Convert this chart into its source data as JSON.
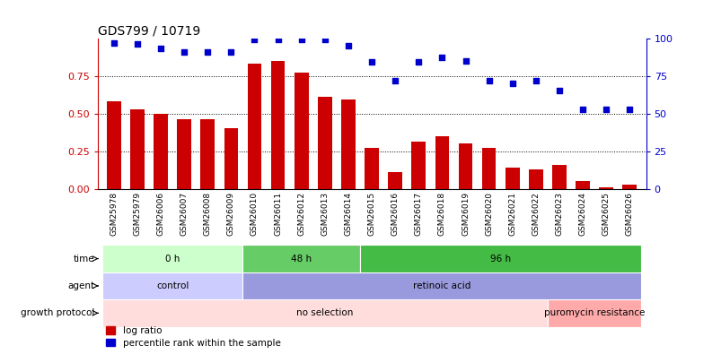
{
  "title": "GDS799 / 10719",
  "samples": [
    "GSM25978",
    "GSM25979",
    "GSM26006",
    "GSM26007",
    "GSM26008",
    "GSM26009",
    "GSM26010",
    "GSM26011",
    "GSM26012",
    "GSM26013",
    "GSM26014",
    "GSM26015",
    "GSM26016",
    "GSM26017",
    "GSM26018",
    "GSM26019",
    "GSM26020",
    "GSM26021",
    "GSM26022",
    "GSM26023",
    "GSM26024",
    "GSM26025",
    "GSM26026"
  ],
  "log_ratio": [
    0.58,
    0.53,
    0.5,
    0.46,
    0.46,
    0.4,
    0.83,
    0.85,
    0.77,
    0.61,
    0.59,
    0.27,
    0.11,
    0.31,
    0.35,
    0.3,
    0.27,
    0.14,
    0.13,
    0.16,
    0.05,
    0.01,
    0.03
  ],
  "percentile_rank": [
    97,
    96,
    93,
    91,
    91,
    91,
    99,
    99,
    99,
    99,
    95,
    84,
    72,
    84,
    87,
    85,
    72,
    70,
    72,
    65,
    53,
    53,
    53
  ],
  "bar_color": "#cc0000",
  "dot_color": "#0000cc",
  "time_groups": [
    {
      "label": "0 h",
      "start": 0,
      "end": 5,
      "color": "#ccffcc"
    },
    {
      "label": "48 h",
      "start": 6,
      "end": 10,
      "color": "#66cc66"
    },
    {
      "label": "96 h",
      "start": 11,
      "end": 22,
      "color": "#44bb44"
    }
  ],
  "agent_groups": [
    {
      "label": "control",
      "start": 0,
      "end": 5,
      "color": "#ccccff"
    },
    {
      "label": "retinoic acid",
      "start": 6,
      "end": 22,
      "color": "#9999dd"
    }
  ],
  "growth_groups": [
    {
      "label": "no selection",
      "start": 0,
      "end": 18,
      "color": "#ffdddd"
    },
    {
      "label": "puromycin resistance",
      "start": 19,
      "end": 22,
      "color": "#ffaaaa"
    }
  ],
  "ylim_left": [
    0,
    1.0
  ],
  "ylim_right": [
    0,
    100
  ],
  "yticks_left": [
    0,
    0.25,
    0.5,
    0.75
  ],
  "yticks_right": [
    0,
    25,
    50,
    75,
    100
  ],
  "background_color": "#ffffff"
}
